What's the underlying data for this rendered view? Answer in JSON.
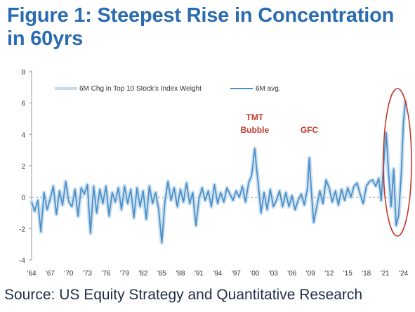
{
  "title": "Figure 1: Steepest Rise in Concentration in 60yrs",
  "source": "Source: US Equity Strategy and Quantitative Research",
  "colors": {
    "title": "#2b6cb0",
    "avg_line": "#4a90c8",
    "raw_line": "#c5dcee",
    "annotation": "#c0392b",
    "zero_line": "#888888"
  },
  "chart_data": {
    "type": "line",
    "ylim": [
      -4,
      8
    ],
    "y_ticks": [
      "-4",
      "-2",
      "0",
      "2",
      "4",
      "6",
      "8"
    ],
    "x_ticks": [
      "'64",
      "'67",
      "'70",
      "'73",
      "'76",
      "'79",
      "'82",
      "'85",
      "'88",
      "'91",
      "'94",
      "'97",
      "'00",
      "'03",
      "'06",
      "'09",
      "'12",
      "'15",
      "'18",
      "'21",
      "'24"
    ],
    "xlim": [
      1964,
      2024.6
    ],
    "legend": {
      "position": "top",
      "raw_label": "6M Chg in Top 10 Stock's Index Weight",
      "avg_label": "6M avg."
    },
    "annotations": [
      {
        "text": "TMT",
        "x": 2000,
        "y": 4.9
      },
      {
        "text": "Bubble",
        "x": 2000,
        "y": 4.1
      },
      {
        "text": "GFC",
        "x": 2008.8,
        "y": 4.1
      }
    ],
    "highlight": {
      "shape": "ellipse",
      "around": "'21–'24",
      "color": "#c0392b"
    },
    "series": [
      {
        "name": "6M avg.",
        "x": [
          1964.0,
          1964.5,
          1965.0,
          1965.5,
          1966.0,
          1966.5,
          1967.0,
          1967.5,
          1968.0,
          1968.5,
          1969.0,
          1969.5,
          1970.0,
          1970.5,
          1971.0,
          1971.5,
          1972.0,
          1972.5,
          1973.0,
          1973.5,
          1974.0,
          1974.5,
          1975.0,
          1975.5,
          1976.0,
          1976.5,
          1977.0,
          1977.5,
          1978.0,
          1978.5,
          1979.0,
          1979.5,
          1980.0,
          1980.5,
          1981.0,
          1981.5,
          1982.0,
          1982.5,
          1983.0,
          1983.5,
          1984.0,
          1984.5,
          1985.0,
          1985.5,
          1986.0,
          1986.5,
          1987.0,
          1987.5,
          1988.0,
          1988.5,
          1989.0,
          1989.5,
          1990.0,
          1990.5,
          1991.0,
          1991.5,
          1992.0,
          1992.5,
          1993.0,
          1993.5,
          1994.0,
          1994.5,
          1995.0,
          1995.5,
          1996.0,
          1996.5,
          1997.0,
          1997.5,
          1998.0,
          1998.5,
          1999.0,
          1999.5,
          2000.0,
          2000.3,
          2000.6,
          2001.0,
          2001.5,
          2002.0,
          2002.5,
          2003.0,
          2003.5,
          2004.0,
          2004.5,
          2005.0,
          2005.5,
          2006.0,
          2006.5,
          2007.0,
          2007.5,
          2008.0,
          2008.5,
          2008.8,
          2009.1,
          2009.5,
          2010.0,
          2010.5,
          2011.0,
          2011.5,
          2012.0,
          2012.5,
          2013.0,
          2013.5,
          2014.0,
          2014.5,
          2015.0,
          2015.5,
          2016.0,
          2016.5,
          2017.0,
          2017.5,
          2018.0,
          2018.5,
          2019.0,
          2019.5,
          2020.0,
          2020.4,
          2020.8,
          2021.2,
          2021.6,
          2022.0,
          2022.4,
          2022.8,
          2023.2,
          2023.6,
          2024.0,
          2024.3
        ],
        "y": [
          -0.3,
          -0.9,
          -0.2,
          -2.2,
          0.3,
          -0.8,
          -0.1,
          0.7,
          -1.1,
          0.4,
          -0.5,
          1.0,
          -0.3,
          -0.6,
          0.5,
          -1.2,
          0.6,
          0.2,
          0.8,
          -2.3,
          0.7,
          -1.0,
          0.5,
          -0.4,
          0.7,
          -1.2,
          0.3,
          -0.3,
          0.6,
          -0.8,
          0.7,
          -0.4,
          0.5,
          -1.3,
          0.6,
          -0.6,
          0.4,
          -1.4,
          0.7,
          -0.4,
          0.3,
          -0.8,
          -2.9,
          -0.3,
          1.0,
          -0.2,
          0.6,
          -0.6,
          0.5,
          -0.3,
          0.9,
          -0.4,
          0.3,
          -1.8,
          -0.1,
          0.6,
          -0.2,
          0.4,
          -0.6,
          0.8,
          -0.4,
          0.3,
          -0.3,
          0.6,
          0.2,
          -0.2,
          0.4,
          0.0,
          0.7,
          -0.3,
          0.9,
          1.4,
          3.1,
          1.8,
          0.7,
          -1.0,
          0.3,
          -0.8,
          0.5,
          -0.6,
          -0.2,
          0.4,
          -0.6,
          0.3,
          -0.6,
          0.1,
          -0.8,
          -0.2,
          0.2,
          -0.5,
          0.6,
          2.5,
          0.5,
          -1.6,
          -0.6,
          0.4,
          -0.4,
          1.1,
          0.6,
          -0.3,
          0.4,
          -0.5,
          0.5,
          -0.2,
          0.6,
          0.0,
          0.7,
          0.9,
          0.2,
          -0.4,
          0.7,
          1.0,
          1.1,
          0.7,
          1.2,
          -0.2,
          2.2,
          4.1,
          1.5,
          -0.6,
          1.8,
          -1.8,
          -1.2,
          1.3,
          4.9,
          6.1
        ]
      }
    ]
  }
}
